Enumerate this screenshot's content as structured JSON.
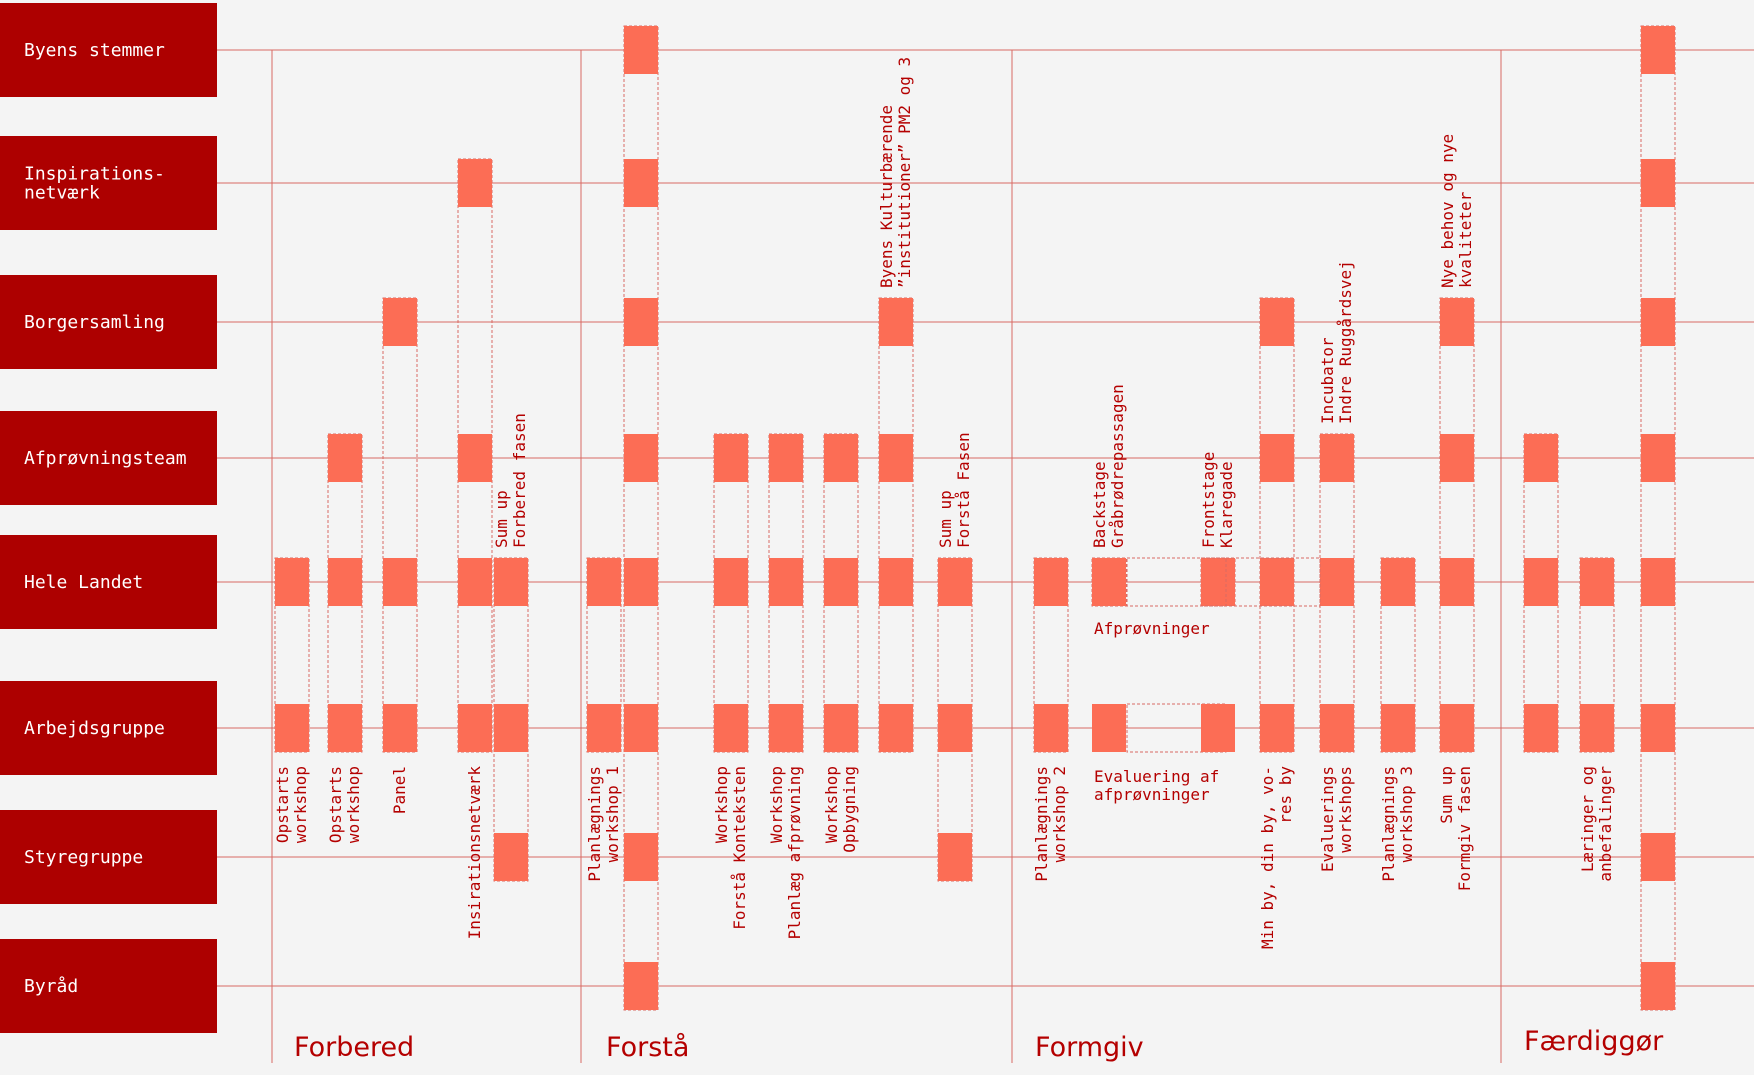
{
  "colors": {
    "lane_fill": "#ad0000",
    "box_fill": "#fc6d55",
    "line": "#d96a63",
    "text": "#b40000",
    "background": "#f4f4f4"
  },
  "lanes": [
    "Byens stemmer",
    "Inspirations-\nnetværk",
    "Borgersamling",
    "Afprøvningsteam",
    "Hele Landet",
    "Arbejdsgruppe",
    "Styregruppe",
    "Byråd"
  ],
  "phases": [
    "Forbered",
    "Forstå",
    "Formgiv",
    "Færdiggør"
  ],
  "activities": [
    {
      "label": "Opstarts\nworkshop",
      "lanes": [
        4,
        5
      ],
      "phase": 0
    },
    {
      "label": "Opstarts\nworkshop",
      "lanes": [
        3,
        4,
        5
      ],
      "phase": 0
    },
    {
      "label": "Panel",
      "lanes": [
        2,
        4,
        5
      ],
      "phase": 0
    },
    {
      "label": "Insirationsnetværk",
      "lanes": [
        1,
        3,
        4,
        5
      ],
      "phase": 0
    },
    {
      "label": "Sum up\nForbered fasen",
      "lanes": [
        4,
        5,
        6
      ],
      "phase": 0,
      "label_above": true
    },
    {
      "label": "Planlægnings\nworkshop 1",
      "lanes": [
        4,
        5
      ],
      "phase": 1
    },
    {
      "label": "",
      "lanes": [
        0,
        1,
        2,
        3,
        4,
        5,
        6,
        7
      ],
      "phase": 1
    },
    {
      "label": "Workshop\nForstå Konteksten",
      "lanes": [
        3,
        4,
        5
      ],
      "phase": 1
    },
    {
      "label": "Workshop\nPlanlæg afprøvning",
      "lanes": [
        3,
        4,
        5
      ],
      "phase": 1
    },
    {
      "label": "Workshop\nOpbygning",
      "lanes": [
        3,
        4,
        5
      ],
      "phase": 1
    },
    {
      "label": "Byens Kulturbærende\n”institutioner” PM2 og 3",
      "lanes": [
        2,
        3,
        4,
        5
      ],
      "phase": 1,
      "label_above": true
    },
    {
      "label": "Sum up\nForstå Fasen",
      "lanes": [
        4,
        5,
        6
      ],
      "phase": 1,
      "label_above": true
    },
    {
      "label": "Planlægnings\nworkshop 2",
      "lanes": [
        4,
        5
      ],
      "phase": 2
    },
    {
      "label": "Backstage\nGråbrødrepassagen",
      "lanes": [
        4
      ],
      "phase": 2,
      "label_above": true
    },
    {
      "label": "Frontstage\nKlaregade",
      "lanes": [
        4
      ],
      "phase": 2,
      "label_above": true
    },
    {
      "label": "Min by, din by, vo-\nres by",
      "lanes": [
        2,
        3,
        4,
        5
      ],
      "phase": 2
    },
    {
      "label": "Incubator\nIndre Ruggårdsvej",
      "lanes": [
        3,
        4,
        5
      ],
      "phase": 2,
      "label_above": true
    },
    {
      "label": "Evaluerings\nworkshops",
      "lanes": [
        3,
        4,
        5
      ],
      "phase": 2
    },
    {
      "label": "Planlægnings\nworkshop 3",
      "lanes": [
        4,
        5
      ],
      "phase": 2
    },
    {
      "label": "Nye behov og nye\nkvaliteter",
      "lanes": [
        2,
        3,
        4,
        5
      ],
      "phase": 2,
      "label_above": true
    },
    {
      "label": "Sum up\nFormgiv fasen",
      "lanes": [],
      "phase": 2
    },
    {
      "label": "",
      "lanes": [
        3,
        4,
        5
      ],
      "phase": 3
    },
    {
      "label": "Læringer og\nanbefalinger",
      "lanes": [
        4,
        5
      ],
      "phase": 3
    },
    {
      "label": "",
      "lanes": [
        0,
        1,
        2,
        3,
        4,
        5,
        6,
        7
      ],
      "phase": 3
    }
  ],
  "annotations": {
    "afprovninger": "Afprøvninger",
    "evaluering": "Evaluering af\nafprøvninger"
  }
}
